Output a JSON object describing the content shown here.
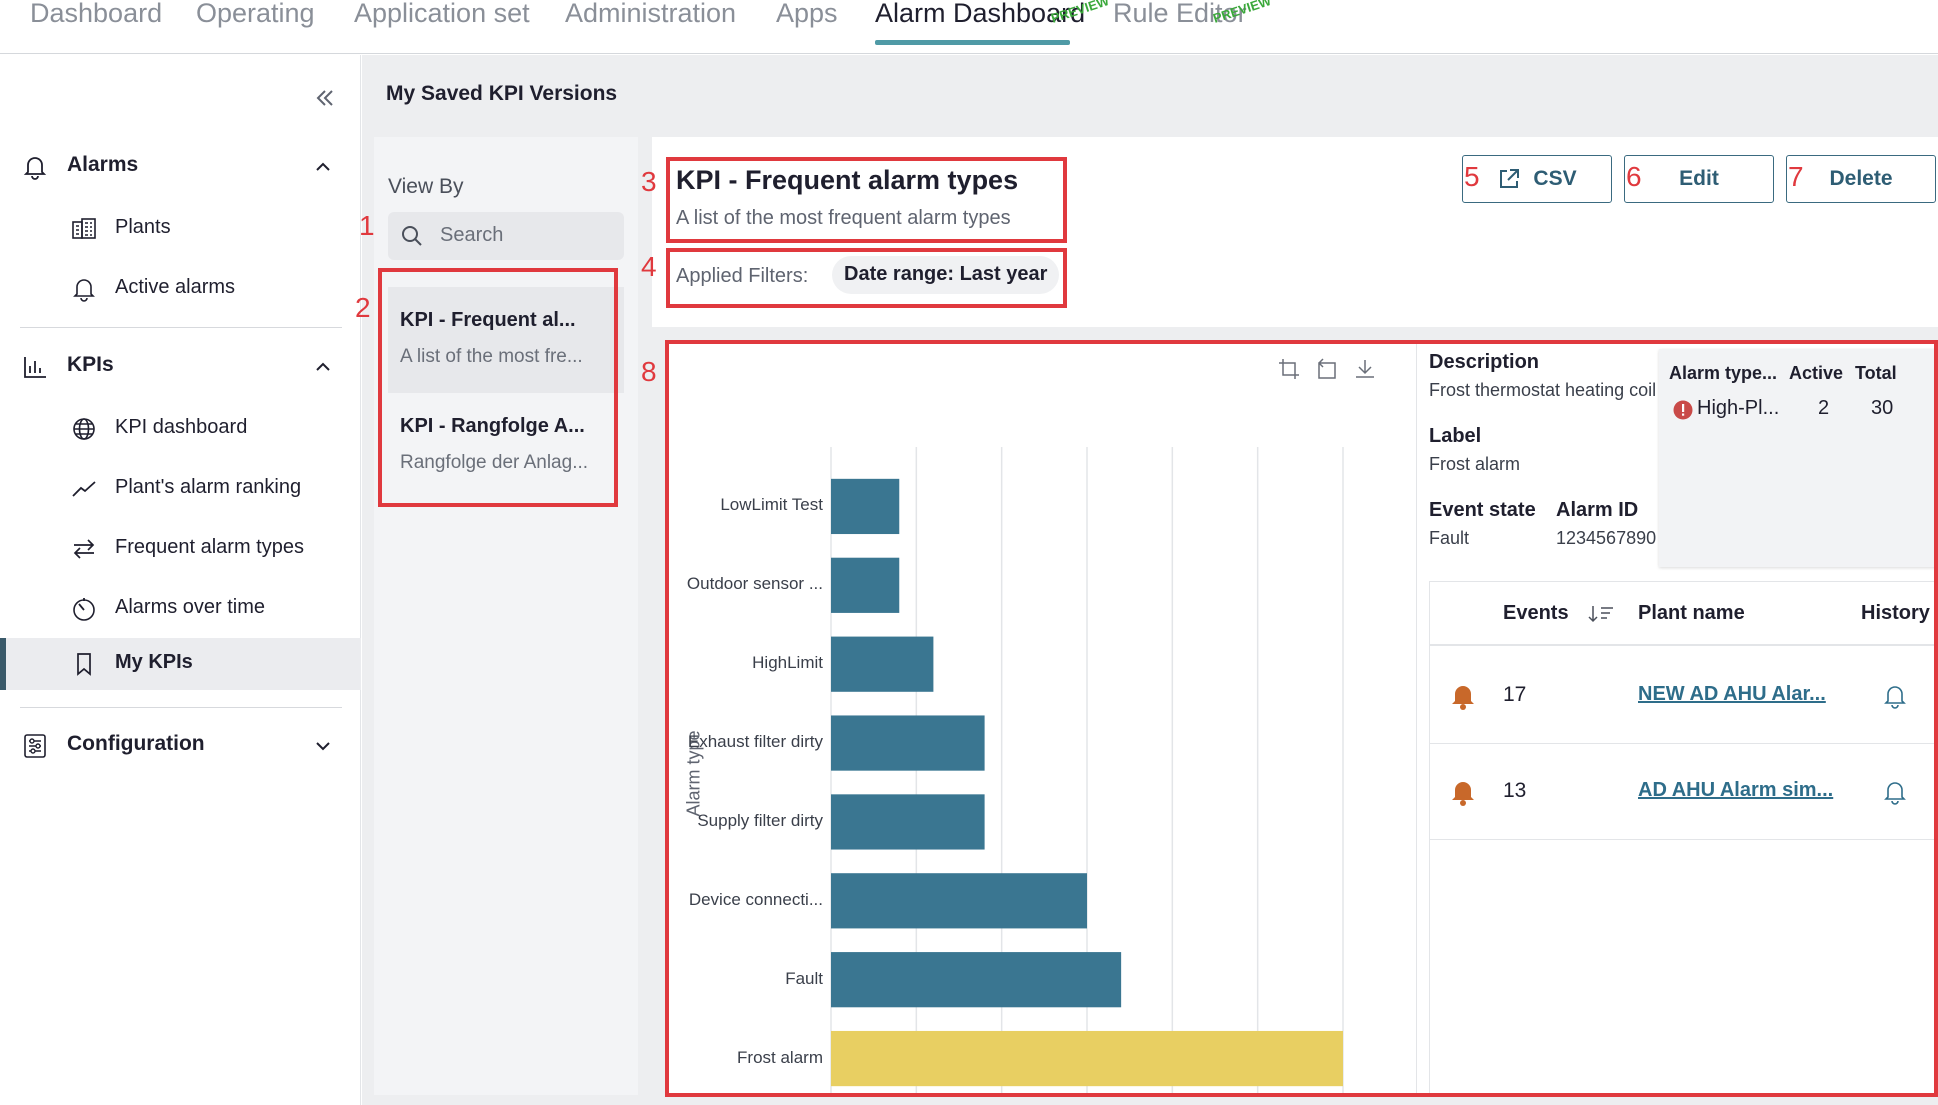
{
  "top_nav": {
    "tabs": [
      {
        "label": "Dashboard"
      },
      {
        "label": "Operating"
      },
      {
        "label": "Application set"
      },
      {
        "label": "Administration"
      },
      {
        "label": "Apps"
      },
      {
        "label": "Alarm Dashboard",
        "active": true,
        "tag": "PREVIEW"
      },
      {
        "label": "Rule Editor",
        "tag": "PREVIEW"
      }
    ]
  },
  "sidebar": {
    "collapse_icon": "double-chevron-left-icon",
    "sections": [
      {
        "label": "Alarms",
        "icon": "bell-icon",
        "expanded": true,
        "items": [
          {
            "label": "Plants",
            "icon": "building-icon"
          },
          {
            "label": "Active alarms",
            "icon": "bell-icon"
          }
        ]
      },
      {
        "label": "KPIs",
        "icon": "bar-chart-icon",
        "expanded": true,
        "items": [
          {
            "label": "KPI dashboard",
            "icon": "globe-icon"
          },
          {
            "label": "Plant's alarm ranking",
            "icon": "trend-line-icon"
          },
          {
            "label": "Frequent alarm types",
            "icon": "swap-arrows-icon"
          },
          {
            "label": "Alarms over time",
            "icon": "timer-icon"
          },
          {
            "label": "My KPIs",
            "icon": "bookmark-icon",
            "selected": true
          }
        ]
      },
      {
        "label": "Configuration",
        "icon": "settings-sliders-icon",
        "expanded": false
      }
    ]
  },
  "main": {
    "page_title": "My Saved KPI Versions",
    "view_by": {
      "title": "View By",
      "search_placeholder": "Search",
      "items": [
        {
          "title": "KPI - Frequent al...",
          "desc": "A list of the most fre...",
          "selected": true
        },
        {
          "title": "KPI - Rangfolge A...",
          "desc": "Rangfolge der Anlag..."
        }
      ]
    },
    "detail": {
      "title": "KPI - Frequent alarm types",
      "description": "A list of the most frequent alarm types",
      "filters_label": "Applied Filters:",
      "filter_chip": "Date range: Last year",
      "buttons": {
        "csv": "CSV",
        "edit": "Edit",
        "delete": "Delete"
      }
    },
    "info": {
      "description_label": "Description",
      "description_value": "Frost thermostat heating coil",
      "label_label": "Label",
      "label_value": "Frost alarm",
      "event_state_label": "Event state",
      "event_state_value": "Fault",
      "alarm_id_label": "Alarm ID",
      "alarm_id_value": "1234567890",
      "summary": {
        "headers": [
          "Alarm type...",
          "Active",
          "Total"
        ],
        "row": {
          "alarm_type": "High-Pl...",
          "active": "2",
          "total": "30"
        }
      }
    },
    "events_table": {
      "headers": {
        "events": "Events",
        "plant_name": "Plant name",
        "history": "History"
      },
      "rows": [
        {
          "events": "17",
          "plant_name": "NEW AD AHU Alar..."
        },
        {
          "events": "13",
          "plant_name": "AD AHU Alarm sim..."
        }
      ]
    }
  },
  "chart_data": {
    "type": "bar",
    "orientation": "horizontal",
    "ylabel": "Alarm type",
    "xlabel": "",
    "categories": [
      "LowLimit Test",
      "Outdoor sensor ...",
      "HighLimit",
      "Exhaust filter dirty",
      "Supply filter dirty",
      "Device connecti...",
      "Fault",
      "Frost alarm"
    ],
    "values": [
      2,
      2,
      3,
      4.5,
      4.5,
      7.5,
      8.5,
      15
    ],
    "xlim": [
      0,
      15
    ],
    "grid": true,
    "colors": {
      "default": "#3a7691",
      "highlight": "#e8cf62"
    },
    "highlighted": "Frost alarm"
  },
  "annotations": [
    "1",
    "2",
    "3",
    "4",
    "5",
    "6",
    "7",
    "8"
  ],
  "colors": {
    "accent": "#4f9aa6",
    "button": "#2e5d74",
    "callout": "#e0393e",
    "bell_orange": "#c8682a",
    "link": "#2e6d8a"
  }
}
